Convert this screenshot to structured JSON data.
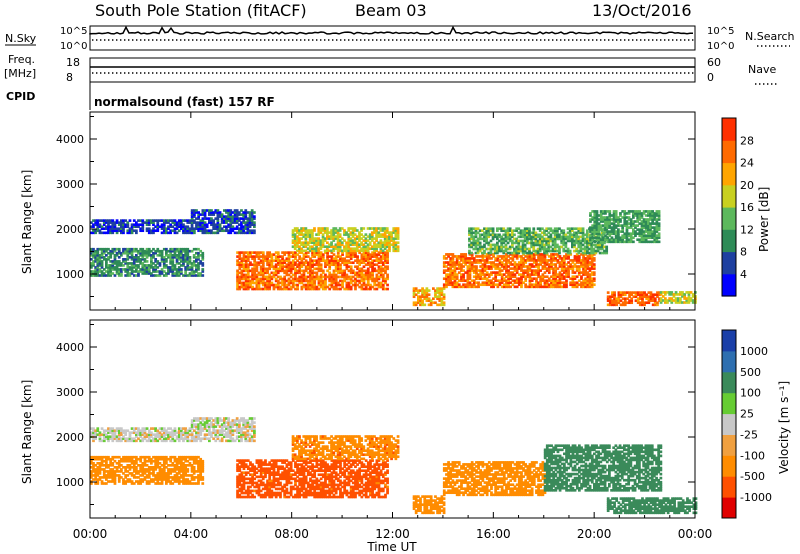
{
  "header": {
    "station": "South Pole Station (fitACF)",
    "beam": "Beam 03",
    "date": "13/Oct/2016"
  },
  "left_labels": {
    "nsky": "N.Sky",
    "freq": "Freq.",
    "mhz": "[MHz]",
    "cpid": "CPID"
  },
  "right_labels": {
    "nsearch": "N.Search",
    "nave": "Nave"
  },
  "noise_axis": {
    "left_ticks": [
      "10^5",
      "10^0"
    ],
    "right_ticks": [
      "10^5",
      "10^0"
    ]
  },
  "freq_axis": {
    "left_ticks": [
      "18",
      "8"
    ],
    "right_ticks": [
      "60",
      "0"
    ]
  },
  "cpid_text": "normalsound (fast) 157 RF",
  "colors": {
    "power_scale": [
      "#0000ff",
      "#1e40a0",
      "#2e8b57",
      "#5cb85c",
      "#c8d020",
      "#ffa500",
      "#ff6a00",
      "#ff3000",
      "#e00000"
    ],
    "velocity_scale": [
      "#1a3fa8",
      "#2e6fb0",
      "#3a8a5a",
      "#66cc33",
      "#c8c8c8",
      "#f0a040",
      "#ff8c00",
      "#ff5000",
      "#e00000"
    ],
    "ground_scatter": "#bdbdbd"
  },
  "chart_data": [
    {
      "type": "heatmap",
      "parameter": "Power",
      "ylabel": "Slant Range [km]",
      "xlabel": "",
      "x_ticks": [
        "00:00",
        "04:00",
        "08:00",
        "12:00",
        "16:00",
        "20:00",
        "00:00"
      ],
      "y_ticks": [
        "1000",
        "2000",
        "3000",
        "4000"
      ],
      "ylim": [
        200,
        4600
      ],
      "xlim_hours": [
        0,
        24
      ],
      "colorbar": {
        "label": "Power [dB]",
        "ticks": [
          "4",
          "8",
          "12",
          "16",
          "20",
          "24",
          "28"
        ]
      },
      "patches": [
        {
          "t0": 0.0,
          "t1": 4.5,
          "r0": 950,
          "r1": 1550,
          "value": 10
        },
        {
          "t0": 0.0,
          "t1": 4.0,
          "r0": 1900,
          "r1": 2200,
          "value": 5
        },
        {
          "t0": 4.0,
          "t1": 6.5,
          "r0": 1900,
          "r1": 2400,
          "value": 6
        },
        {
          "t0": 5.8,
          "t1": 11.8,
          "r0": 650,
          "r1": 1500,
          "value": 26
        },
        {
          "t0": 8.0,
          "t1": 12.2,
          "r0": 1500,
          "r1": 2000,
          "value": 18
        },
        {
          "t0": 12.8,
          "t1": 14.0,
          "r0": 300,
          "r1": 700,
          "value": 22
        },
        {
          "t0": 14.0,
          "t1": 20.0,
          "r0": 700,
          "r1": 1450,
          "value": 26
        },
        {
          "t0": 15.0,
          "t1": 20.5,
          "r0": 1450,
          "r1": 2000,
          "value": 13
        },
        {
          "t0": 19.8,
          "t1": 22.6,
          "r0": 1700,
          "r1": 2400,
          "value": 12
        },
        {
          "t0": 20.5,
          "t1": 22.6,
          "r0": 300,
          "r1": 600,
          "value": 27
        },
        {
          "t0": 22.6,
          "t1": 24.0,
          "r0": 350,
          "r1": 600,
          "value": 18
        }
      ]
    },
    {
      "type": "heatmap",
      "parameter": "Velocity",
      "ylabel": "Slant Range [km]",
      "xlabel": "Time UT",
      "x_ticks": [
        "00:00",
        "04:00",
        "08:00",
        "12:00",
        "16:00",
        "20:00",
        "00:00"
      ],
      "y_ticks": [
        "1000",
        "2000",
        "3000",
        "4000"
      ],
      "ylim": [
        200,
        4600
      ],
      "xlim_hours": [
        0,
        24
      ],
      "colorbar": {
        "label": "Velocity [m s⁻¹]",
        "ticks": [
          "1000",
          "500",
          "100",
          "25",
          "-25",
          "-100",
          "-500",
          "-1000"
        ]
      },
      "patches": [
        {
          "t0": 0.0,
          "t1": 4.5,
          "r0": 950,
          "r1": 1550,
          "value": -300
        },
        {
          "t0": 0.0,
          "t1": 4.0,
          "r0": 1900,
          "r1": 2200,
          "value": 0
        },
        {
          "t0": 4.0,
          "t1": 6.5,
          "r0": 1900,
          "r1": 2400,
          "value": 0
        },
        {
          "t0": 5.8,
          "t1": 11.8,
          "r0": 650,
          "r1": 1500,
          "value": -700
        },
        {
          "t0": 8.0,
          "t1": 12.2,
          "r0": 1500,
          "r1": 2000,
          "value": -400
        },
        {
          "t0": 12.8,
          "t1": 14.0,
          "r0": 300,
          "r1": 700,
          "value": -200
        },
        {
          "t0": 14.0,
          "t1": 18.0,
          "r0": 700,
          "r1": 1450,
          "value": -250
        },
        {
          "t0": 18.0,
          "t1": 22.6,
          "r0": 800,
          "r1": 1800,
          "value": 200
        },
        {
          "t0": 20.5,
          "t1": 24.0,
          "r0": 300,
          "r1": 650,
          "value": 150
        }
      ]
    }
  ]
}
